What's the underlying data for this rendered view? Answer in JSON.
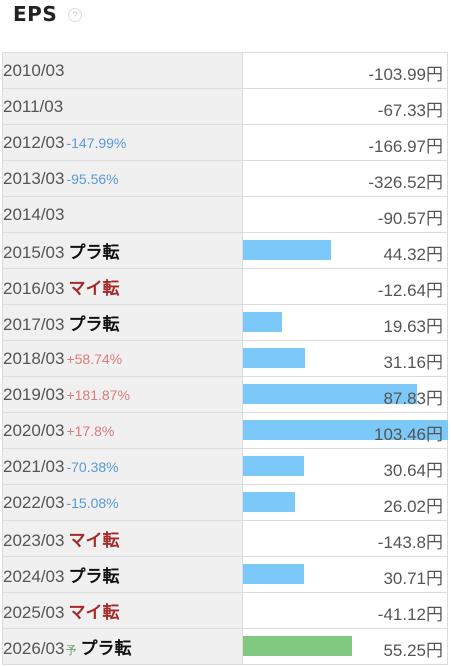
{
  "header": {
    "title": "EPS",
    "help_glyph": "?"
  },
  "bar_max_value": 103.46,
  "rows": [
    {
      "year": "2010/03",
      "change": "",
      "change_dir": "",
      "tag": "",
      "tag_type": "",
      "forecast": "",
      "value": 0,
      "value_label": "-103.99円"
    },
    {
      "year": "2011/03",
      "change": "",
      "change_dir": "",
      "tag": "",
      "tag_type": "",
      "forecast": "",
      "value": 0,
      "value_label": "-67.33円"
    },
    {
      "year": "2012/03",
      "change": "-147.99%",
      "change_dir": "neg",
      "tag": "",
      "tag_type": "",
      "forecast": "",
      "value": 0,
      "value_label": "-166.97円"
    },
    {
      "year": "2013/03",
      "change": "-95.56%",
      "change_dir": "neg",
      "tag": "",
      "tag_type": "",
      "forecast": "",
      "value": 0,
      "value_label": "-326.52円"
    },
    {
      "year": "2014/03",
      "change": "",
      "change_dir": "",
      "tag": "",
      "tag_type": "",
      "forecast": "",
      "value": 0,
      "value_label": "-90.57円"
    },
    {
      "year": "2015/03",
      "change": "",
      "change_dir": "",
      "tag": "プラ転",
      "tag_type": "plus",
      "forecast": "",
      "value": 44.32,
      "value_label": "44.32円"
    },
    {
      "year": "2016/03",
      "change": "",
      "change_dir": "",
      "tag": "マイ転",
      "tag_type": "minus",
      "forecast": "",
      "value": 0,
      "value_label": "-12.64円"
    },
    {
      "year": "2017/03",
      "change": "",
      "change_dir": "",
      "tag": "プラ転",
      "tag_type": "plus",
      "forecast": "",
      "value": 19.63,
      "value_label": "19.63円"
    },
    {
      "year": "2018/03",
      "change": "+58.74%",
      "change_dir": "pos",
      "tag": "",
      "tag_type": "",
      "forecast": "",
      "value": 31.16,
      "value_label": "31.16円"
    },
    {
      "year": "2019/03",
      "change": "+181.87%",
      "change_dir": "pos",
      "tag": "",
      "tag_type": "",
      "forecast": "",
      "value": 87.83,
      "value_label": "87.83円"
    },
    {
      "year": "2020/03",
      "change": "+17.8%",
      "change_dir": "pos",
      "tag": "",
      "tag_type": "",
      "forecast": "",
      "value": 103.46,
      "value_label": "103.46円"
    },
    {
      "year": "2021/03",
      "change": "-70.38%",
      "change_dir": "neg",
      "tag": "",
      "tag_type": "",
      "forecast": "",
      "value": 30.64,
      "value_label": "30.64円"
    },
    {
      "year": "2022/03",
      "change": "-15.08%",
      "change_dir": "neg",
      "tag": "",
      "tag_type": "",
      "forecast": "",
      "value": 26.02,
      "value_label": "26.02円"
    },
    {
      "year": "2023/03",
      "change": "",
      "change_dir": "",
      "tag": "マイ転",
      "tag_type": "minus",
      "forecast": "",
      "value": 0,
      "value_label": "-143.8円"
    },
    {
      "year": "2024/03",
      "change": "",
      "change_dir": "",
      "tag": "プラ転",
      "tag_type": "plus",
      "forecast": "",
      "value": 30.71,
      "value_label": "30.71円"
    },
    {
      "year": "2025/03",
      "change": "",
      "change_dir": "",
      "tag": "マイ転",
      "tag_type": "minus",
      "forecast": "",
      "value": 0,
      "value_label": "-41.12円"
    },
    {
      "year": "2026/03",
      "change": "",
      "change_dir": "",
      "tag": "プラ転",
      "tag_type": "plus",
      "forecast": "予",
      "value": 55.25,
      "value_label": "55.25円"
    }
  ]
}
